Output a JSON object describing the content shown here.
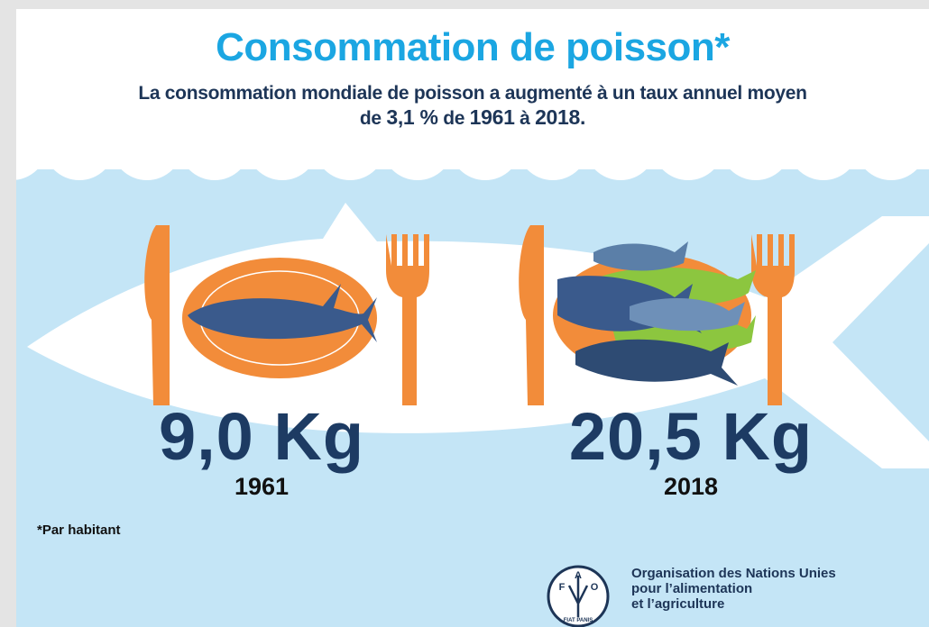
{
  "header": {
    "title": "Consommation de poisson*",
    "subtitle": [
      "La consommation mondiale de poisson a augmenté à un taux annuel moyen",
      "de ",
      "3,1 %",
      " de ",
      "1961",
      " à ",
      "2018."
    ]
  },
  "panels": [
    {
      "amount": "9,0 Kg",
      "year": "1961"
    },
    {
      "amount": "20,5 Kg",
      "year": "2018"
    }
  ],
  "footnote": "*Par habitant",
  "logo": {
    "letters": [
      "F",
      "A",
      "O"
    ],
    "motto": "FIAT PANIS"
  },
  "organisation": [
    "Organisation des Nations Unies",
    "pour l’alimentation",
    "et l’agriculture"
  ]
}
